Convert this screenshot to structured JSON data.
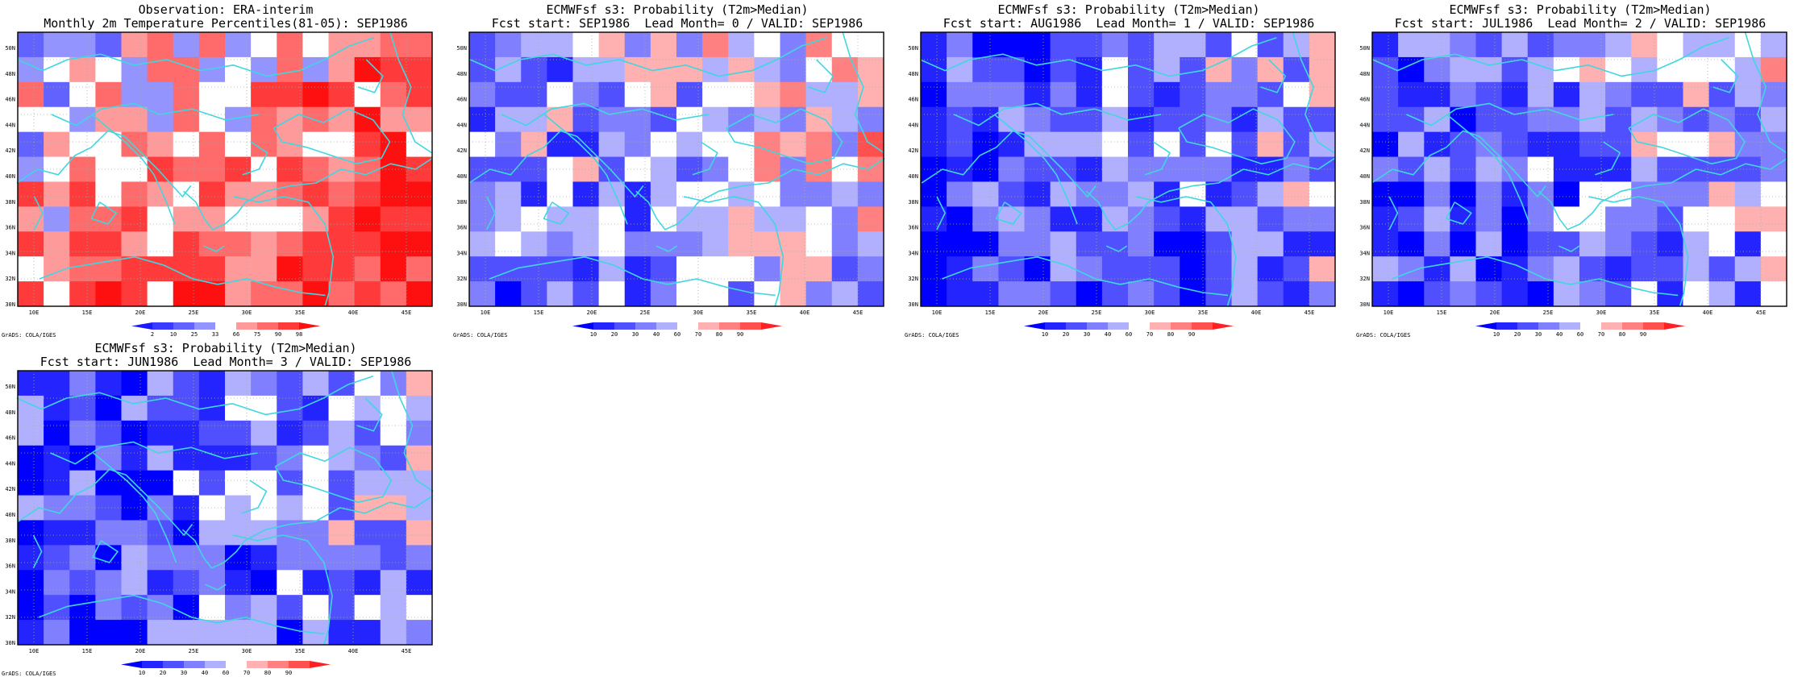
{
  "credit": "GrADS: COLA/IGES",
  "lat_labels": [
    "50N",
    "48N",
    "46N",
    "44N",
    "42N",
    "40N",
    "38N",
    "36N",
    "34N",
    "32N",
    "30N"
  ],
  "lon_labels": [
    "10E",
    "15E",
    "20E",
    "25E",
    "30E",
    "35E",
    "40E",
    "45E"
  ],
  "colors": {
    "coast": "#40d6e0",
    "grid": "#aaaaaa",
    "obs_scale": [
      "#1a1aff",
      "#3b3bff",
      "#6262ff",
      "#9494ff",
      "#ffffff",
      "#ff9a9a",
      "#ff6a6a",
      "#ff3a3a",
      "#ff1010"
    ],
    "prob_scale": [
      "#0000ff",
      "#2424ff",
      "#5050ff",
      "#8080ff",
      "#b0b0ff",
      "#ffffff",
      "#ffb0b0",
      "#ff8080",
      "#ff5050",
      "#ff2020"
    ]
  },
  "panels": [
    {
      "title_line1": "Observation: ERA-interim",
      "title_line2": "Monthly 2m Temperature Percentiles(81-05): SEP1986",
      "colorbar_labels": [
        "2",
        "10",
        "25",
        "33",
        "66",
        "75",
        "90",
        "98"
      ],
      "legend_colors": [
        "#1a1aff",
        "#3b3bff",
        "#6262ff",
        "#9494ff",
        "#ffffff",
        "#ff9a9a",
        "#ff6a6a",
        "#ff3a3a",
        "#ff1010"
      ],
      "seed": 11,
      "bias": 0.45
    },
    {
      "title_line1": "ECMWFsf s3: Probability (T2m>Median)",
      "title_line2": "Fcst start: SEP1986  Lead Month= 0 / VALID: SEP1986",
      "colorbar_labels": [
        "10",
        "20",
        "30",
        "40",
        "60",
        "70",
        "80",
        "90"
      ],
      "legend_colors": [
        "#0000ff",
        "#2424ff",
        "#5050ff",
        "#8080ff",
        "#b0b0ff",
        "#ffffff",
        "#ffb0b0",
        "#ff8080",
        "#ff5050",
        "#ff2020"
      ],
      "seed": 23,
      "bias": -0.1
    },
    {
      "title_line1": "ECMWFsf s3: Probability (T2m>Median)",
      "title_line2": "Fcst start: AUG1986  Lead Month= 1 / VALID: SEP1986",
      "colorbar_labels": [
        "10",
        "20",
        "30",
        "40",
        "60",
        "70",
        "80",
        "90"
      ],
      "legend_colors": [
        "#0000ff",
        "#2424ff",
        "#5050ff",
        "#8080ff",
        "#b0b0ff",
        "#ffffff",
        "#ffb0b0",
        "#ff8080",
        "#ff5050",
        "#ff2020"
      ],
      "seed": 37,
      "bias": -0.45
    },
    {
      "title_line1": "ECMWFsf s3: Probability (T2m>Median)",
      "title_line2": "Fcst start: JUL1986  Lead Month= 2 / VALID: SEP1986",
      "colorbar_labels": [
        "10",
        "20",
        "30",
        "40",
        "60",
        "70",
        "80",
        "90"
      ],
      "legend_colors": [
        "#0000ff",
        "#2424ff",
        "#5050ff",
        "#8080ff",
        "#b0b0ff",
        "#ffffff",
        "#ffb0b0",
        "#ff8080",
        "#ff5050",
        "#ff2020"
      ],
      "seed": 51,
      "bias": -0.35
    },
    {
      "title_line1": "ECMWFsf s3: Probability (T2m>Median)",
      "title_line2": "Fcst start: JUN1986  Lead Month= 3 / VALID: SEP1986",
      "colorbar_labels": [
        "10",
        "20",
        "30",
        "40",
        "60",
        "70",
        "80",
        "90"
      ],
      "legend_colors": [
        "#0000ff",
        "#2424ff",
        "#5050ff",
        "#8080ff",
        "#b0b0ff",
        "#ffffff",
        "#ffb0b0",
        "#ff8080",
        "#ff5050",
        "#ff2020"
      ],
      "seed": 67,
      "bias": -0.4
    }
  ]
}
